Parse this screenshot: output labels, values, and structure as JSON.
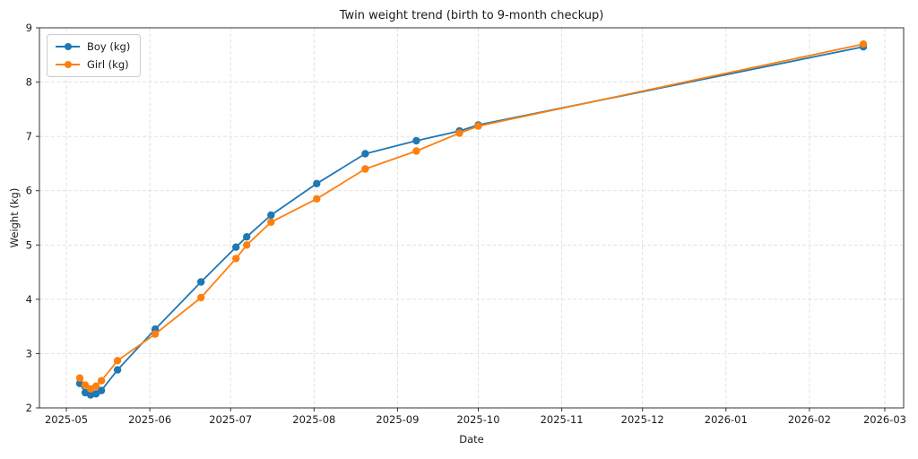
{
  "chart_data": {
    "type": "line",
    "title": "Twin weight trend (birth to 9-month checkup)",
    "xlabel": "Date",
    "ylabel": "Weight (kg)",
    "grid": true,
    "legend_position": "upper left",
    "marker": "o",
    "ylim": [
      2,
      9
    ],
    "yticks": [
      2,
      3,
      4,
      5,
      6,
      7,
      8,
      9
    ],
    "xlim_dates": [
      "2025-04-21",
      "2026-03-08"
    ],
    "xticks": [
      {
        "date": "2025-05-01",
        "label": "2025-05"
      },
      {
        "date": "2025-06-01",
        "label": "2025-06"
      },
      {
        "date": "2025-07-01",
        "label": "2025-07"
      },
      {
        "date": "2025-08-01",
        "label": "2025-08"
      },
      {
        "date": "2025-09-01",
        "label": "2025-09"
      },
      {
        "date": "2025-10-01",
        "label": "2025-10"
      },
      {
        "date": "2025-11-01",
        "label": "2025-11"
      },
      {
        "date": "2025-12-01",
        "label": "2025-12"
      },
      {
        "date": "2026-01-01",
        "label": "2026-01"
      },
      {
        "date": "2026-02-01",
        "label": "2026-02"
      },
      {
        "date": "2026-03-01",
        "label": "2026-03"
      }
    ],
    "x_dates": [
      "2025-05-06",
      "2025-05-08",
      "2025-05-10",
      "2025-05-12",
      "2025-05-14",
      "2025-05-20",
      "2025-06-03",
      "2025-06-20",
      "2025-07-03",
      "2025-07-07",
      "2025-07-16",
      "2025-08-02",
      "2025-08-20",
      "2025-09-08",
      "2025-09-24",
      "2025-10-01",
      "2026-02-21"
    ],
    "series": [
      {
        "name": "Boy (kg)",
        "color": "#1f77b4",
        "values": [
          2.45,
          2.28,
          2.24,
          2.26,
          2.32,
          2.7,
          3.45,
          4.32,
          4.96,
          5.15,
          5.55,
          6.13,
          6.68,
          6.92,
          7.1,
          7.21,
          8.65
        ]
      },
      {
        "name": "Girl (kg)",
        "color": "#ff7f0e",
        "values": [
          2.55,
          2.42,
          2.35,
          2.4,
          2.5,
          2.87,
          3.36,
          4.03,
          4.75,
          5.0,
          5.42,
          5.85,
          6.4,
          6.73,
          7.06,
          7.19,
          8.7
        ]
      }
    ],
    "style": {
      "grid_color": "#dedede",
      "spine_color": "#333333",
      "tick_color": "#333333",
      "text_color": "#1a1a1a"
    }
  }
}
